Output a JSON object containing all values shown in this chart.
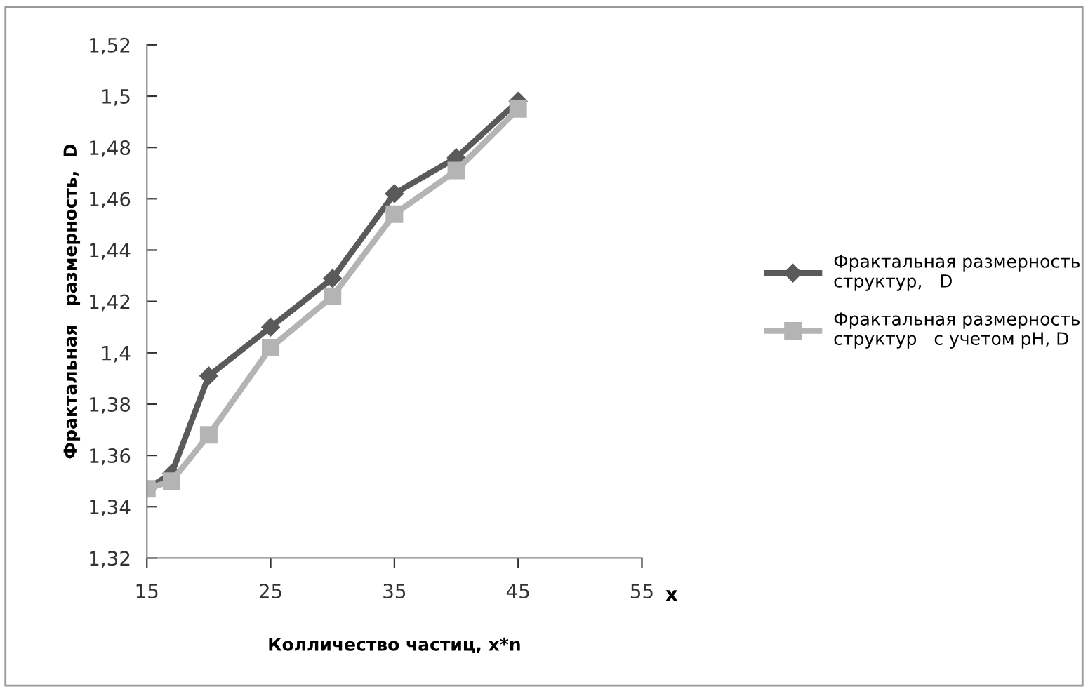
{
  "chart_data": {
    "type": "line",
    "xlabel": "Колличество частиц, x*n",
    "ylabel": "Фрактальная   размерность,  D",
    "annotations": [
      "x"
    ],
    "series": [
      {
        "name": "Фрактальная размерность\nструктур,   D",
        "color": "#5a5a5a",
        "marker": "diamond",
        "x": [
          15,
          17,
          20,
          25,
          30,
          35,
          40,
          45
        ],
        "values": [
          1.347,
          1.353,
          1.391,
          1.41,
          1.429,
          1.462,
          1.476,
          1.498
        ]
      },
      {
        "name": "Фрактальная размерность\nструктур   с учетом pH, D",
        "color": "#b4b4b4",
        "marker": "square",
        "x": [
          15,
          17,
          20,
          25,
          30,
          35,
          40,
          45
        ],
        "values": [
          1.347,
          1.35,
          1.368,
          1.402,
          1.422,
          1.454,
          1.471,
          1.495
        ]
      }
    ],
    "xlim": [
      15,
      55
    ],
    "xticks": [
      15,
      25,
      35,
      45,
      55
    ],
    "ylim": [
      1.32,
      1.52
    ],
    "yticks": [
      {
        "value": 1.32,
        "label": "1,32"
      },
      {
        "value": 1.34,
        "label": "1,34"
      },
      {
        "value": 1.36,
        "label": "1,36"
      },
      {
        "value": 1.38,
        "label": "1,38"
      },
      {
        "value": 1.4,
        "label": "1,4"
      },
      {
        "value": 1.42,
        "label": "1,42"
      },
      {
        "value": 1.44,
        "label": "1,44"
      },
      {
        "value": 1.46,
        "label": "1,46"
      },
      {
        "value": 1.48,
        "label": "1,48"
      },
      {
        "value": 1.5,
        "label": "1,5"
      },
      {
        "value": 1.52,
        "label": "1,52"
      }
    ],
    "legend": "right",
    "grid": false,
    "line_style": "solid"
  }
}
